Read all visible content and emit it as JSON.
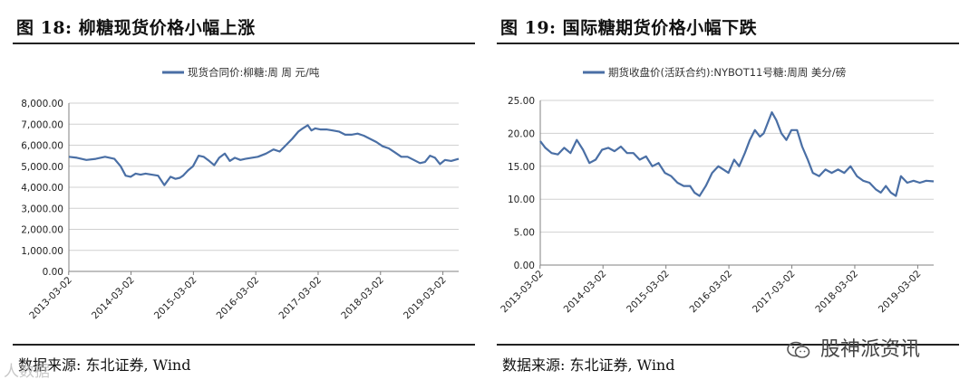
{
  "watermarks": {
    "left": "人数据",
    "right": "股神派资讯",
    "right_icon": "wechat-icon"
  },
  "colors": {
    "line": "#4a6fa5",
    "grid": "#d0d0d0",
    "axis": "#808080"
  },
  "chart_data": [
    {
      "type": "line",
      "title": "图 18:  柳糖现货价格小幅上涨",
      "source": "数据来源:  东北证券, Wind",
      "legend": "top-center",
      "grid": true,
      "ylim": [
        0,
        8000
      ],
      "yticks": [
        "0.00",
        "1,000.00",
        "2,000.00",
        "3,000.00",
        "4,000.00",
        "5,000.00",
        "6,000.00",
        "7,000.00",
        "8,000.00"
      ],
      "xticks": [
        "2013-03-02",
        "2014-03-02",
        "2015-03-02",
        "2016-03-02",
        "2017-03-02",
        "2018-03-02",
        "2019-03-02"
      ],
      "xrange": [
        2013.17,
        2019.42
      ],
      "series": [
        {
          "name": "现货合同价:柳糖:周 周 元/吨",
          "x": [
            2013.17,
            2013.3,
            2013.45,
            2013.6,
            2013.75,
            2013.9,
            2014.0,
            2014.08,
            2014.16,
            2014.24,
            2014.32,
            2014.4,
            2014.5,
            2014.6,
            2014.7,
            2014.8,
            2014.88,
            2014.95,
            2015.0,
            2015.08,
            2015.16,
            2015.25,
            2015.33,
            2015.42,
            2015.5,
            2015.58,
            2015.67,
            2015.75,
            2015.83,
            2015.92,
            2016.0,
            2016.1,
            2016.2,
            2016.33,
            2016.45,
            2016.55,
            2016.65,
            2016.75,
            2016.85,
            2016.92,
            2017.0,
            2017.06,
            2017.12,
            2017.2,
            2017.3,
            2017.4,
            2017.5,
            2017.6,
            2017.7,
            2017.8,
            2017.9,
            2018.0,
            2018.1,
            2018.2,
            2018.3,
            2018.4,
            2018.5,
            2018.6,
            2018.7,
            2018.8,
            2018.88,
            2018.96,
            2019.04,
            2019.12,
            2019.2,
            2019.3,
            2019.42
          ],
          "values": [
            5450,
            5400,
            5300,
            5350,
            5450,
            5350,
            5000,
            4550,
            4500,
            4650,
            4600,
            4650,
            4600,
            4550,
            4100,
            4500,
            4400,
            4450,
            4550,
            4800,
            5000,
            5500,
            5450,
            5250,
            5050,
            5400,
            5600,
            5250,
            5400,
            5300,
            5350,
            5400,
            5450,
            5600,
            5800,
            5700,
            6000,
            6300,
            6650,
            6800,
            6950,
            6700,
            6800,
            6750,
            6750,
            6700,
            6650,
            6500,
            6500,
            6550,
            6450,
            6300,
            6150,
            5950,
            5850,
            5650,
            5450,
            5450,
            5300,
            5150,
            5200,
            5500,
            5400,
            5100,
            5300,
            5250,
            5350
          ]
        }
      ]
    },
    {
      "type": "line",
      "title": "图 19:  国际糖期货价格小幅下跌",
      "source": "数据来源:  东北证券, Wind",
      "legend": "top-center",
      "grid": true,
      "ylim": [
        0,
        25
      ],
      "yticks": [
        "0.00",
        "5.00",
        "10.00",
        "15.00",
        "20.00",
        "25.00"
      ],
      "xticks": [
        "2013-03-02",
        "2014-03-02",
        "2015-03-02",
        "2016-03-02",
        "2017-03-02",
        "2018-03-02",
        "2019-03-02"
      ],
      "xrange": [
        2013.17,
        2019.42
      ],
      "series": [
        {
          "name": "期货收盘价(活跃合约):NYBOT11号糖:周周 美分/磅",
          "x": [
            2013.17,
            2013.25,
            2013.35,
            2013.45,
            2013.55,
            2013.65,
            2013.75,
            2013.85,
            2013.95,
            2014.05,
            2014.15,
            2014.25,
            2014.35,
            2014.45,
            2014.55,
            2014.65,
            2014.75,
            2014.85,
            2014.95,
            2015.05,
            2015.15,
            2015.25,
            2015.35,
            2015.45,
            2015.55,
            2015.62,
            2015.7,
            2015.8,
            2015.9,
            2016.0,
            2016.08,
            2016.16,
            2016.25,
            2016.33,
            2016.42,
            2016.5,
            2016.58,
            2016.66,
            2016.72,
            2016.78,
            2016.85,
            2016.92,
            2017.0,
            2017.08,
            2017.16,
            2017.25,
            2017.33,
            2017.42,
            2017.5,
            2017.6,
            2017.7,
            2017.8,
            2017.9,
            2018.0,
            2018.1,
            2018.2,
            2018.3,
            2018.4,
            2018.5,
            2018.58,
            2018.66,
            2018.74,
            2018.82,
            2018.9,
            2019.0,
            2019.1,
            2019.2,
            2019.3,
            2019.42
          ],
          "values": [
            18.8,
            17.8,
            17.0,
            16.8,
            17.8,
            17.0,
            19.0,
            17.5,
            15.5,
            16.0,
            17.5,
            17.8,
            17.3,
            18.0,
            17.0,
            17.0,
            16.0,
            16.5,
            15.0,
            15.5,
            14.0,
            13.5,
            12.5,
            12.0,
            12.0,
            11.0,
            10.5,
            12.0,
            14.0,
            15.0,
            14.5,
            14.0,
            16.0,
            15.0,
            17.0,
            19.0,
            20.5,
            19.5,
            20.0,
            21.5,
            23.2,
            22.0,
            20.0,
            19.0,
            20.5,
            20.5,
            18.0,
            16.0,
            14.0,
            13.5,
            14.5,
            14.0,
            14.5,
            14.0,
            15.0,
            13.5,
            12.8,
            12.5,
            11.5,
            11.0,
            12.0,
            11.0,
            10.5,
            13.5,
            12.5,
            12.8,
            12.5,
            12.8,
            12.7
          ]
        }
      ]
    }
  ]
}
